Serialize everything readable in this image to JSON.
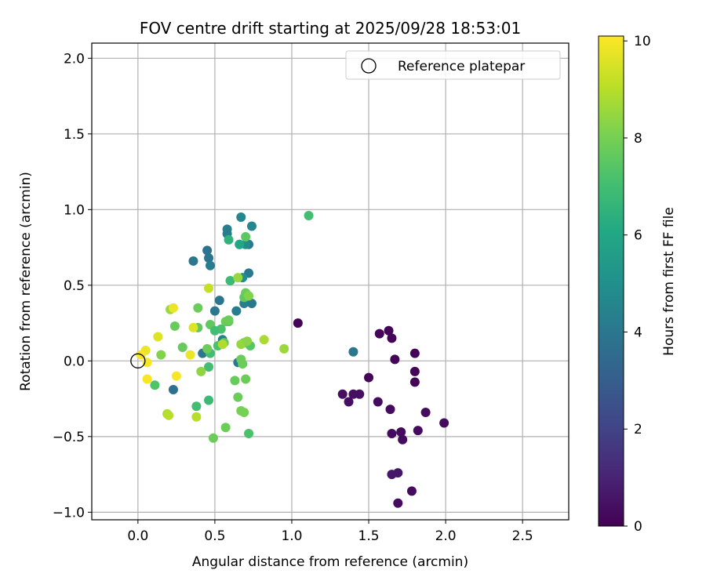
{
  "chart_data": {
    "type": "scatter",
    "title": "FOV centre drift starting at 2025/09/28 18:53:01",
    "xlabel": "Angular distance from reference (arcmin)",
    "ylabel": "Rotation from reference (arcmin)",
    "xlim": [
      -0.3,
      2.8
    ],
    "ylim": [
      -1.05,
      2.1
    ],
    "xticks": [
      0.0,
      0.5,
      1.0,
      1.5,
      2.0,
      2.5
    ],
    "xtick_labels": [
      "0.0",
      "0.5",
      "1.0",
      "1.5",
      "2.0",
      "2.5"
    ],
    "yticks": [
      -1.0,
      -0.5,
      0.0,
      0.5,
      1.0,
      1.5,
      2.0
    ],
    "ytick_labels": [
      "−1.0",
      "−0.5",
      "0.0",
      "0.5",
      "1.0",
      "1.5",
      "2.0"
    ],
    "grid": true,
    "legend": {
      "position": "top-right",
      "entries": [
        "Reference platepar"
      ]
    },
    "reference_point": {
      "x": 0.0,
      "y": 0.0,
      "marker": "open-circle"
    },
    "colorbar": {
      "label": "Hours from first FF file",
      "range": [
        0,
        10.1
      ],
      "ticks": [
        0,
        2,
        4,
        6,
        8,
        10
      ],
      "tick_labels": [
        "0",
        "2",
        "4",
        "6",
        "8",
        "10"
      ],
      "colormap": "viridis"
    },
    "series": [
      {
        "name": "FOV centre drift",
        "x": [
          1.04,
          1.57,
          1.63,
          1.65,
          1.67,
          1.8,
          1.8,
          1.8,
          1.5,
          1.33,
          1.37,
          1.4,
          1.44,
          1.56,
          1.64,
          1.65,
          1.71,
          1.72,
          1.82,
          1.87,
          1.99,
          1.65,
          1.69,
          1.69,
          1.78,
          1.4,
          0.67,
          0.58,
          0.58,
          0.74,
          0.72,
          0.7,
          0.66,
          0.45,
          0.46,
          0.47,
          0.36,
          0.72,
          0.68,
          0.69,
          0.74,
          0.53,
          0.64,
          0.5,
          0.65,
          0.42,
          0.55,
          0.23,
          1.11,
          0.66,
          0.6,
          0.7,
          0.59,
          0.39,
          0.47,
          0.57,
          0.59,
          0.54,
          0.73,
          0.69,
          0.56,
          0.5,
          0.52,
          0.47,
          0.46,
          0.38,
          0.29,
          0.46,
          0.24,
          0.63,
          0.67,
          0.65,
          0.7,
          0.72,
          0.39,
          0.11,
          0.45,
          0.65,
          0.69,
          0.7,
          0.59,
          0.57,
          0.72,
          0.67,
          0.71,
          0.68,
          0.82,
          0.95,
          0.67,
          0.69,
          0.49,
          0.46,
          0.15,
          0.21,
          0.55,
          0.41,
          0.19,
          0.2,
          0.13,
          0.34,
          0.23,
          0.38,
          0.36,
          0.25,
          0.05,
          0.02,
          0.06,
          0.06
        ],
        "y": [
          0.25,
          0.18,
          0.2,
          0.15,
          0.01,
          0.05,
          -0.07,
          -0.14,
          -0.11,
          -0.22,
          -0.27,
          -0.22,
          -0.22,
          -0.27,
          -0.32,
          -0.48,
          -0.47,
          -0.52,
          -0.46,
          -0.34,
          -0.41,
          -0.75,
          -0.74,
          -0.94,
          -0.86,
          0.06,
          0.95,
          0.87,
          0.84,
          0.89,
          0.77,
          0.77,
          0.77,
          0.73,
          0.68,
          0.63,
          0.66,
          0.58,
          0.55,
          0.38,
          0.38,
          0.4,
          0.33,
          0.33,
          -0.01,
          0.05,
          0.14,
          -0.19,
          0.96,
          0.77,
          0.53,
          0.82,
          0.8,
          0.35,
          0.24,
          0.26,
          0.26,
          0.21,
          0.1,
          0.12,
          0.12,
          0.2,
          0.1,
          0.05,
          -0.26,
          -0.3,
          0.09,
          -0.04,
          0.23,
          -0.13,
          0.01,
          -0.24,
          -0.12,
          -0.48,
          0.22,
          -0.16,
          0.08,
          0.55,
          0.42,
          0.45,
          0.27,
          -0.44,
          0.43,
          0.11,
          0.13,
          -0.02,
          0.14,
          0.08,
          -0.33,
          -0.34,
          -0.51,
          0.48,
          0.04,
          0.34,
          0.11,
          -0.07,
          -0.35,
          -0.36,
          0.16,
          0.04,
          0.35,
          -0.37,
          0.22,
          -0.1,
          0.07,
          0.04,
          -0.01,
          -0.12
        ],
        "c": [
          0.1,
          0.1,
          0.1,
          0.1,
          0.1,
          0.1,
          0.1,
          0.1,
          0.1,
          0.4,
          0.4,
          0.4,
          0.4,
          0.3,
          0.3,
          0.3,
          0.3,
          0.3,
          0.3,
          0.3,
          0.3,
          0.6,
          0.6,
          0.3,
          0.3,
          4.0,
          4.6,
          4.3,
          4.2,
          4.6,
          4.0,
          4.8,
          4.8,
          3.8,
          3.9,
          4.2,
          4.0,
          4.1,
          5.0,
          4.3,
          4.1,
          3.9,
          4.2,
          4.0,
          4.1,
          3.9,
          4.3,
          3.7,
          7.0,
          6.0,
          6.8,
          7.5,
          6.5,
          7.8,
          7.6,
          7.8,
          7.6,
          7.2,
          7.4,
          7.8,
          7.6,
          7.0,
          7.2,
          7.0,
          6.8,
          7.0,
          7.7,
          7.0,
          7.7,
          7.7,
          7.8,
          7.8,
          7.8,
          7.2,
          7.6,
          7.3,
          7.8,
          8.5,
          7.6,
          7.8,
          7.8,
          7.8,
          8.2,
          8.5,
          8.3,
          7.8,
          8.8,
          8.6,
          8.0,
          8.0,
          7.8,
          9.2,
          8.2,
          8.6,
          8.9,
          8.4,
          8.9,
          9.0,
          9.6,
          9.8,
          9.8,
          9.0,
          9.6,
          10.0,
          9.8,
          10.0,
          10.0,
          10.0
        ]
      }
    ]
  }
}
